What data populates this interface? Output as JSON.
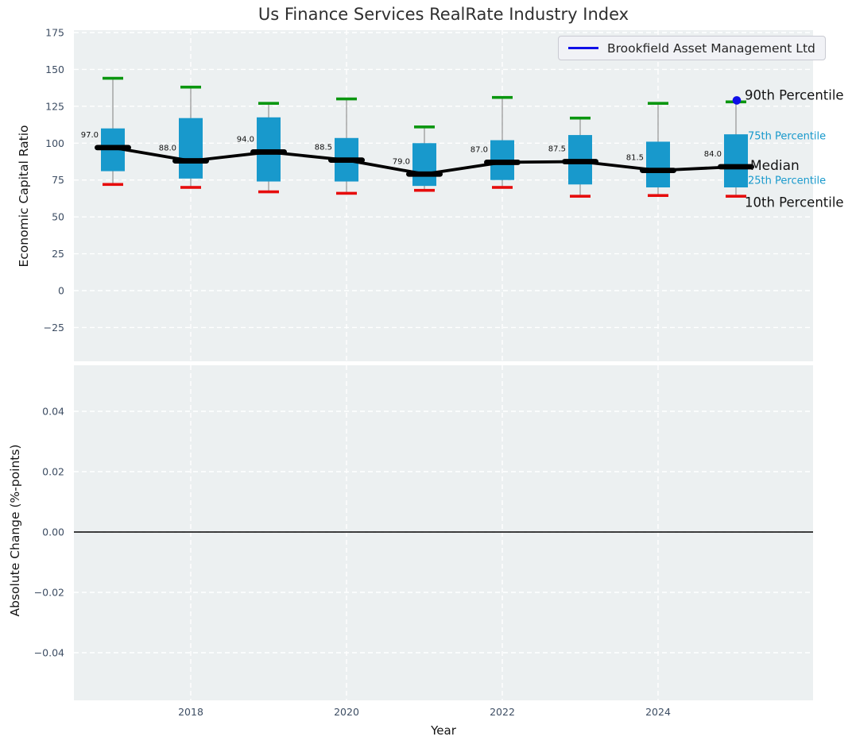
{
  "title": "Us Finance Services RealRate Industry Index",
  "legend": {
    "label": "Brookfield Asset Management Ltd"
  },
  "top_axis": {
    "ylabel": "Economic Capital Ratio",
    "yticks": [
      175,
      150,
      125,
      100,
      75,
      50,
      25,
      0,
      -25
    ],
    "ytick_labels": [
      "175",
      "150",
      "125",
      "100",
      "75",
      "50",
      "25",
      "0",
      "−25"
    ]
  },
  "bottom_axis": {
    "ylabel": "Absolute Change (%-points)",
    "yticks": [
      0.04,
      0.02,
      0,
      -0.02,
      -0.04
    ],
    "ytick_labels": [
      "0.04",
      "0.02",
      "0.00",
      "−0.02",
      "−0.04"
    ],
    "xlabel": "Year",
    "xticks": [
      2018,
      2020,
      2022,
      2024
    ],
    "xtick_labels": [
      "2018",
      "2020",
      "2022",
      "2024"
    ]
  },
  "annotations": [
    "90th Percentile",
    "75th Percentile",
    "Median",
    "25th Percentile",
    "10th Percentile"
  ],
  "colors": {
    "plot_bg": "#ecf0f1",
    "grid": "#ffffff",
    "tick": "#3d4d63",
    "box_fill": "#1899cc",
    "cap_high": "#0a960f",
    "cap_low": "#e60c0c",
    "whisker": "#8a8a8a",
    "median": "#000000",
    "series_blue": "#0f0fe8",
    "percentile_label_cyan": "#1899cc"
  },
  "chart_data": [
    {
      "type": "boxplot",
      "title": "Us Finance Services RealRate Industry Index",
      "xlabel": "Year",
      "ylabel": "Economic Capital Ratio",
      "x": [
        2017,
        2018,
        2019,
        2020,
        2021,
        2022,
        2023,
        2024,
        2025
      ],
      "series": [
        {
          "name": "90th Percentile",
          "values": [
            144,
            138,
            127,
            130,
            111,
            131,
            117,
            127,
            128
          ]
        },
        {
          "name": "75th Percentile",
          "values": [
            110,
            117,
            117.5,
            103.5,
            100,
            102,
            105.5,
            101,
            106
          ]
        },
        {
          "name": "Median",
          "values": [
            97.0,
            88.0,
            94.0,
            88.5,
            79.0,
            87.0,
            87.5,
            81.5,
            84.0
          ]
        },
        {
          "name": "25th Percentile",
          "values": [
            81,
            76,
            74,
            74,
            71,
            75,
            72,
            70,
            70
          ]
        },
        {
          "name": "10th Percentile",
          "values": [
            72,
            70,
            67,
            66,
            68,
            70,
            64,
            64.5,
            64
          ]
        }
      ],
      "median_labels": [
        "97.0",
        "88.0",
        "94.0",
        "88.5",
        "79.0",
        "87.0",
        "87.5",
        "81.5",
        "84.0"
      ],
      "highlight_point": {
        "name": "Brookfield Asset Management Ltd",
        "x": 2025,
        "y": 129
      },
      "ylim": [
        -48,
        176
      ],
      "grid": true,
      "legend_position": "upper right"
    },
    {
      "type": "line",
      "xlabel": "Year",
      "ylabel": "Absolute Change (%-points)",
      "x": [],
      "series": [],
      "zero_line_y": 0.0,
      "ylim": [
        -0.056,
        0.055
      ],
      "grid": true
    }
  ]
}
